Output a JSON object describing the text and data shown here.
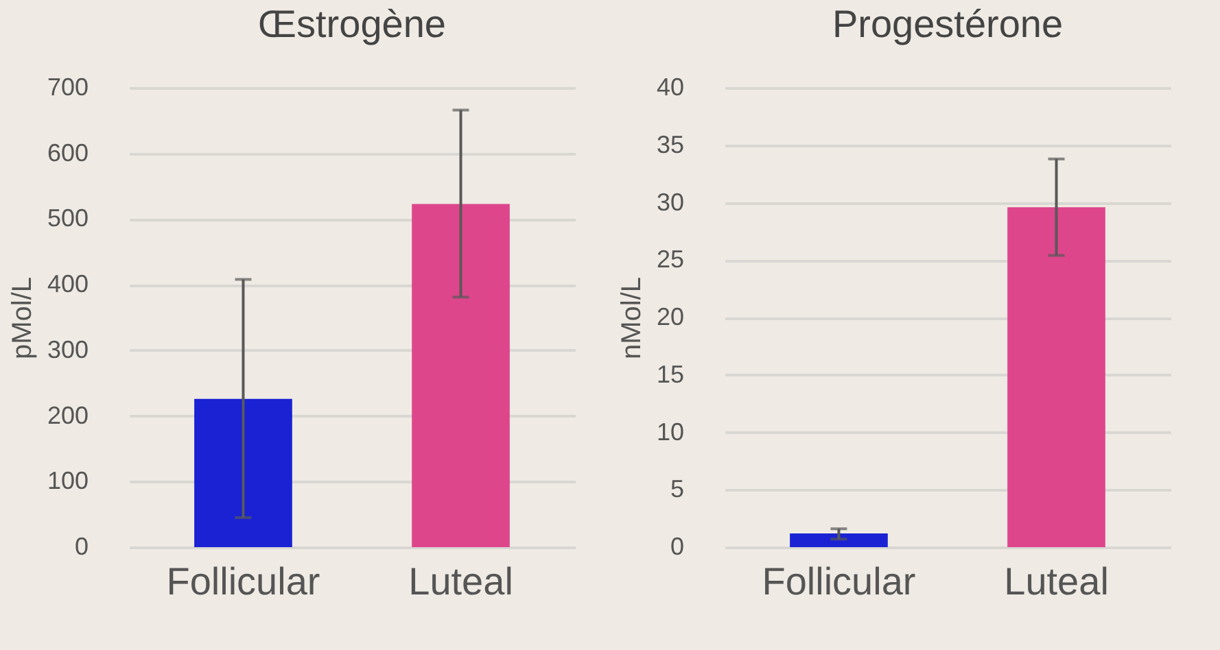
{
  "chart_data": [
    {
      "type": "bar",
      "title": "Œstrogène",
      "ylabel": "pMol/L",
      "categories": [
        "Follicular",
        "Luteal"
      ],
      "values": [
        226,
        523
      ],
      "colors": [
        "#1a22d4",
        "#de468c"
      ],
      "errors": [
        [
          45,
          408
        ],
        [
          381,
          666
        ]
      ],
      "ylim": [
        0,
        700
      ],
      "yticks": [
        0,
        100,
        200,
        300,
        400,
        500,
        600,
        700
      ],
      "grid": "y"
    },
    {
      "type": "bar",
      "title": "Progestérone",
      "ylabel": "nMol/L",
      "categories": [
        "Follicular",
        "Luteal"
      ],
      "values": [
        1.2,
        29.6
      ],
      "colors": [
        "#1a22d4",
        "#de468c"
      ],
      "errors": [
        [
          0.7,
          1.6
        ],
        [
          25.4,
          33.8
        ]
      ],
      "ylim": [
        0,
        40
      ],
      "yticks": [
        0,
        5,
        10,
        15,
        20,
        25,
        30,
        35,
        40
      ],
      "grid": "y"
    }
  ]
}
